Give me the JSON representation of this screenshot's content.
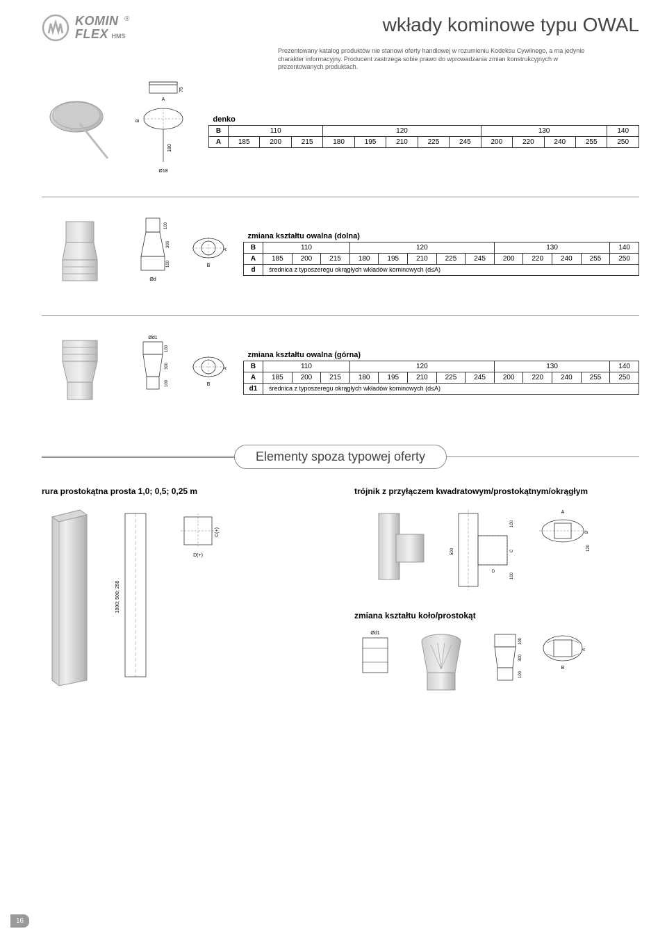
{
  "logo": {
    "line1": "KOMIN",
    "line2": "FLEX",
    "sub": "HMS",
    "reg": "®"
  },
  "page_title": "wkłady kominowe typu OWAL",
  "disclaimer": "Prezentowany katalog produktów nie stanowi oferty handlowej w rozumieniu Kodeksu Cywilnego, a ma jedynie charakter informacyjny. Producent zastrzega sobie prawo do wprowadzania zmian konstrukcyjnych w prezentowanych produktach.",
  "tables": {
    "denko": {
      "title": "denko",
      "rows": [
        {
          "label": "B",
          "spans": [
            {
              "v": "110",
              "c": 3
            },
            {
              "v": "120",
              "c": 5
            },
            {
              "v": "130",
              "c": 4
            },
            {
              "v": "140",
              "c": 1
            }
          ]
        },
        {
          "label": "A",
          "cells": [
            "185",
            "200",
            "215",
            "180",
            "195",
            "210",
            "225",
            "245",
            "200",
            "220",
            "240",
            "255",
            "250"
          ]
        }
      ]
    },
    "dolna": {
      "title": "zmiana kształtu owalna (dolna)",
      "rows": [
        {
          "label": "B",
          "spans": [
            {
              "v": "110",
              "c": 3
            },
            {
              "v": "120",
              "c": 5
            },
            {
              "v": "130",
              "c": 4
            },
            {
              "v": "140",
              "c": 1
            }
          ]
        },
        {
          "label": "A",
          "cells": [
            "185",
            "200",
            "215",
            "180",
            "195",
            "210",
            "225",
            "245",
            "200",
            "220",
            "240",
            "255",
            "250"
          ]
        },
        {
          "label": "d",
          "note": "średnica z typoszeregu okrągłych wkładów kominowych (d≤A)"
        }
      ]
    },
    "gorna": {
      "title": "zmiana kształtu owalna (górna)",
      "rows": [
        {
          "label": "B",
          "spans": [
            {
              "v": "110",
              "c": 3
            },
            {
              "v": "120",
              "c": 5
            },
            {
              "v": "130",
              "c": 4
            },
            {
              "v": "140",
              "c": 1
            }
          ]
        },
        {
          "label": "A",
          "cells": [
            "185",
            "200",
            "215",
            "180",
            "195",
            "210",
            "225",
            "245",
            "200",
            "220",
            "240",
            "255",
            "250"
          ]
        },
        {
          "label": "d1",
          "note": "średnica z typoszeregu okrągłych wkładów kominowych (d≤A)"
        }
      ]
    }
  },
  "section_heading": "Elementy spoza typowej oferty",
  "bottom": {
    "left_title": "rura prostokątna prosta 1,0; 0,5; 0,25 m",
    "right_title": "trójnik z przyłączem kwadratowym/prostokątnym/okrągłym",
    "sub_title": "zmiana kształtu koło/prostokąt"
  },
  "drawing_labels": {
    "denko": {
      "a": "A",
      "b": "B",
      "h1": "75",
      "h2": "180",
      "d": "Ø18"
    },
    "dolna": {
      "a": "A",
      "b": "B",
      "h1": "100",
      "h2": "300",
      "h3": "100",
      "d": "Ød"
    },
    "gorna": {
      "a": "A",
      "b": "B",
      "h1": "100",
      "h2": "300",
      "h3": "100",
      "d": "Ød1"
    },
    "rura": {
      "h": "1000; 500; 250",
      "c": "C(+)",
      "d": "D(+)"
    },
    "trojnik": {
      "a": "A",
      "b": "B",
      "c": "C",
      "d": "D",
      "h1": "100",
      "h2": "500",
      "h3": "100",
      "w": "120"
    },
    "kolo": {
      "a": "A",
      "b": "B",
      "h1": "100",
      "h2": "300",
      "h3": "100",
      "d": "Ød1"
    }
  },
  "page_number": "16",
  "colors": {
    "text": "#444444",
    "border": "#333333",
    "logo": "#888888",
    "line": "#888888"
  }
}
